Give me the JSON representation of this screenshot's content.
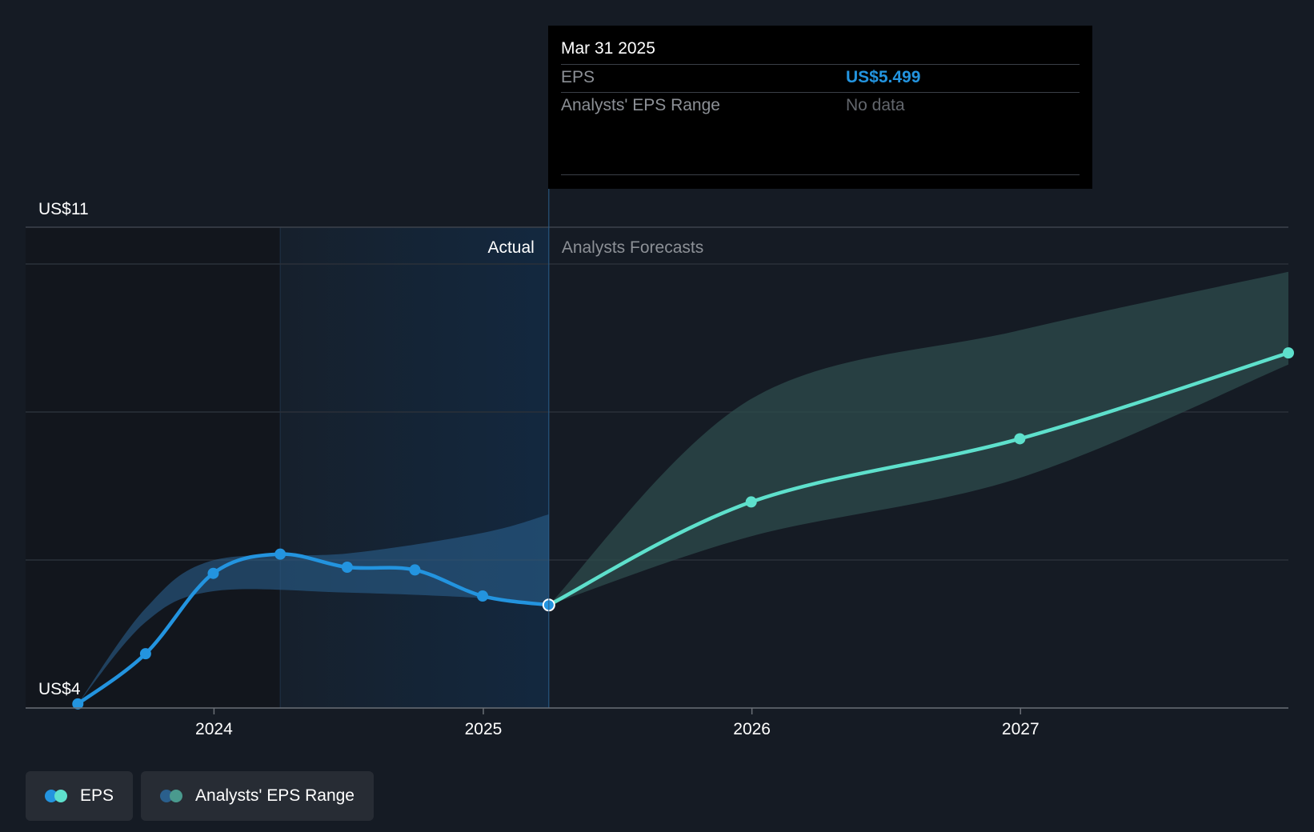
{
  "chart_data": {
    "type": "line",
    "y_labels": {
      "top": "US$11",
      "bottom": "US$4"
    },
    "ylim": [
      4,
      11
    ],
    "x_ticks": [
      {
        "label": "2024",
        "date": "2024-01-01"
      },
      {
        "label": "2025",
        "date": "2025-01-01"
      },
      {
        "label": "2026",
        "date": "2026-01-01"
      },
      {
        "label": "2027",
        "date": "2027-01-01"
      }
    ],
    "x_range": [
      "2023-04-20",
      "2027-12-31"
    ],
    "actual_label": "Actual",
    "forecast_label": "Analysts Forecasts",
    "actual_region": [
      "2024-03-31",
      "2025-03-31"
    ],
    "series": [
      {
        "name": "EPS",
        "color": "#2394df",
        "points": [
          {
            "x": "2023-06-30",
            "y": 4.06
          },
          {
            "x": "2023-09-30",
            "y": 4.79
          },
          {
            "x": "2023-12-31",
            "y": 5.96
          },
          {
            "x": "2024-03-31",
            "y": 6.24
          },
          {
            "x": "2024-06-30",
            "y": 6.05
          },
          {
            "x": "2024-09-30",
            "y": 6.01
          },
          {
            "x": "2024-12-31",
            "y": 5.63
          },
          {
            "x": "2025-03-31",
            "y": 5.499
          }
        ]
      },
      {
        "name": "EPS Forecast",
        "color": "#5ee0cc",
        "points": [
          {
            "x": "2025-03-31",
            "y": 5.499
          },
          {
            "x": "2025-12-31",
            "y": 7.0
          },
          {
            "x": "2026-12-31",
            "y": 7.92
          },
          {
            "x": "2027-12-31",
            "y": 9.17
          }
        ]
      }
    ],
    "ranges": [
      {
        "name": "Analysts' EPS Range (actual)",
        "color": "#2a5f8c",
        "low": [
          {
            "x": "2023-06-30",
            "y": 4.06
          },
          {
            "x": "2023-09-30",
            "y": 5.25
          },
          {
            "x": "2023-12-31",
            "y": 5.7
          },
          {
            "x": "2024-06-30",
            "y": 5.68
          },
          {
            "x": "2024-12-31",
            "y": 5.6
          },
          {
            "x": "2025-03-31",
            "y": 5.499
          }
        ],
        "high": [
          {
            "x": "2023-06-30",
            "y": 4.06
          },
          {
            "x": "2023-09-30",
            "y": 5.45
          },
          {
            "x": "2023-12-31",
            "y": 6.15
          },
          {
            "x": "2024-06-30",
            "y": 6.25
          },
          {
            "x": "2024-12-31",
            "y": 6.55
          },
          {
            "x": "2025-03-31",
            "y": 6.82
          }
        ]
      },
      {
        "name": "Analysts' EPS Range (forecast)",
        "color": "#2e4c4c",
        "low": [
          {
            "x": "2025-03-31",
            "y": 5.499
          },
          {
            "x": "2025-12-31",
            "y": 6.5
          },
          {
            "x": "2026-12-31",
            "y": 7.35
          },
          {
            "x": "2027-12-31",
            "y": 9.0
          }
        ],
        "high": [
          {
            "x": "2025-03-31",
            "y": 5.499
          },
          {
            "x": "2025-12-31",
            "y": 8.5
          },
          {
            "x": "2026-12-31",
            "y": 9.5
          },
          {
            "x": "2027-12-31",
            "y": 10.35
          }
        ]
      }
    ]
  },
  "tooltip": {
    "date": "Mar 31 2025",
    "rows": [
      {
        "label": "EPS",
        "value": "US$5.499"
      },
      {
        "label": "Analysts' EPS Range",
        "value": "No data"
      }
    ]
  },
  "legend": [
    {
      "label": "EPS",
      "colors": [
        "#2394df",
        "#5ee0cc"
      ]
    },
    {
      "label": "Analysts' EPS Range",
      "colors": [
        "#2a5f8c",
        "#4a9a8e"
      ]
    }
  ],
  "colors": {
    "background": "#151b24",
    "grid": "#2b3039",
    "actual_band": "#14253a",
    "marker_highlight": "#ffffff"
  }
}
